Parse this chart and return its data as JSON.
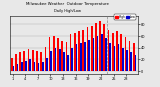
{
  "title": "Milwaukee Weather  Outdoor Temperature",
  "subtitle": "Daily High/Low",
  "bar_width": 0.4,
  "background_color": "#e8e8e8",
  "plot_bg_color": "#e8e8e8",
  "high_color": "#ff0000",
  "low_color": "#0000cc",
  "legend_high": "High",
  "legend_low": "Low",
  "ylim": [
    -5,
    95
  ],
  "yticks": [
    0,
    20,
    40,
    60,
    80
  ],
  "vline_x": 22.5,
  "n_days": 30,
  "highs": [
    22,
    30,
    32,
    35,
    38,
    36,
    34,
    33,
    42,
    58,
    60,
    56,
    52,
    50,
    63,
    66,
    68,
    70,
    76,
    78,
    83,
    86,
    80,
    70,
    66,
    68,
    63,
    58,
    52,
    48
  ],
  "lows": [
    8,
    12,
    15,
    18,
    20,
    16,
    13,
    16,
    22,
    35,
    40,
    38,
    32,
    28,
    40,
    46,
    48,
    50,
    53,
    56,
    60,
    63,
    56,
    48,
    43,
    46,
    40,
    36,
    32,
    28
  ]
}
